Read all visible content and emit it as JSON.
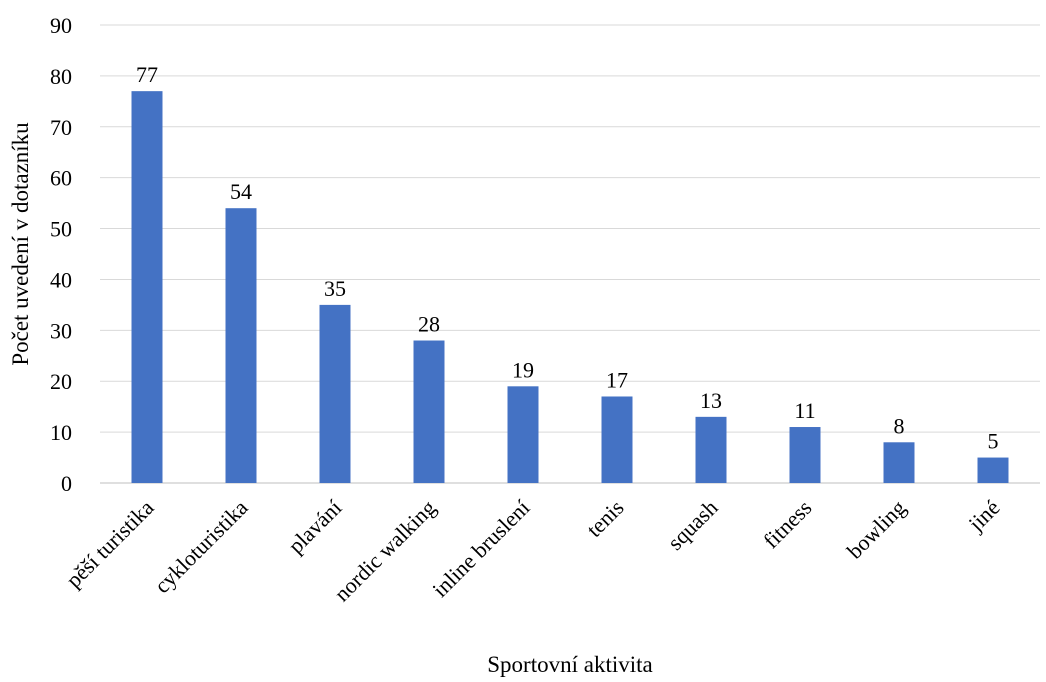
{
  "chart_data": {
    "type": "bar",
    "title": "",
    "xlabel": "Sportovní aktivita",
    "ylabel": "Počet uvedení v dotazníku",
    "categories": [
      "pěší turistika",
      "cykloturistika",
      "plavání",
      "nordic walking",
      "inline bruslení",
      "tenis",
      "squash",
      "fitness",
      "bowling",
      "jiné"
    ],
    "values": [
      77,
      54,
      35,
      28,
      19,
      17,
      13,
      11,
      8,
      5
    ],
    "ylim": [
      0,
      90
    ],
    "yticks": [
      0,
      10,
      20,
      30,
      40,
      50,
      60,
      70,
      80,
      90
    ],
    "grid": true,
    "legend": "none",
    "bar_color": "#4472c4"
  }
}
